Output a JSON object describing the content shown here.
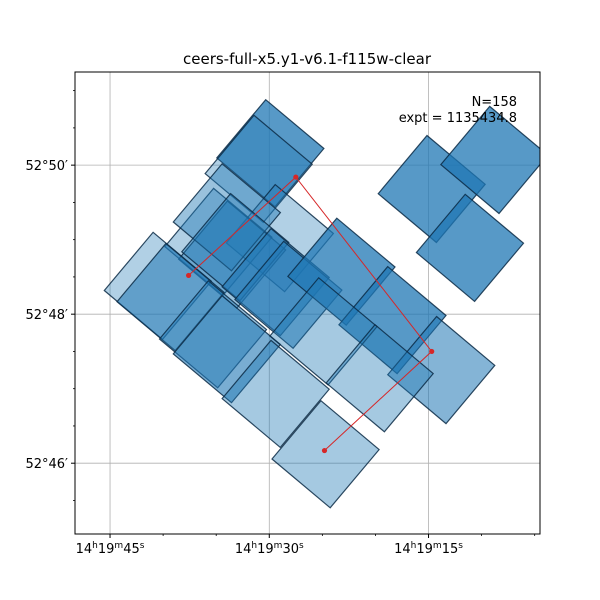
{
  "chart_data": {
    "type": "footprint-map",
    "title": "ceers-full-x5.y1-v6.1-f115w-clear",
    "annotation": {
      "n_label": "N=158",
      "expt_label": "expt = 1135434.8"
    },
    "x_axis": {
      "units": "RA (hms)",
      "major_ticks": [
        {
          "ra_s": 45,
          "label_h": "14",
          "label_m": "19",
          "label_s": "45"
        },
        {
          "ra_s": 30,
          "label_h": "14",
          "label_m": "19",
          "label_s": "30"
        },
        {
          "ra_s": 15,
          "label_h": "14",
          "label_m": "19",
          "label_s": "15"
        }
      ],
      "range_ra_s": [
        48.3,
        4.5
      ]
    },
    "y_axis": {
      "units": "Dec (arcmin offset from 52°)",
      "major_ticks": [
        {
          "dec_arcmin": 50,
          "label": "52°50′"
        },
        {
          "dec_arcmin": 48,
          "label": "52°48′"
        },
        {
          "dec_arcmin": 46,
          "label": "52°46′"
        }
      ],
      "range_dec_arcmin": [
        45.05,
        51.25
      ]
    },
    "grid": true,
    "colors": {
      "tile": "#1f77b4",
      "edge": "#0b2a45",
      "path": "#d62728"
    },
    "pointings_path": [
      {
        "ra_s": 37.6,
        "dec": 48.52
      },
      {
        "ra_s": 27.5,
        "dec": 49.84
      },
      {
        "ra_s": 14.7,
        "dec": 47.5
      },
      {
        "ra_s": 24.8,
        "dec": 46.17
      }
    ],
    "tiles": [
      {
        "ra_s": 29.9,
        "dec": 50.16,
        "alpha": 0.75
      },
      {
        "ra_s": 31.0,
        "dec": 49.95,
        "alpha": 0.35
      },
      {
        "ra_s": 14.7,
        "dec": 49.68,
        "alpha": 0.75
      },
      {
        "ra_s": 8.8,
        "dec": 50.07,
        "alpha": 0.75
      },
      {
        "ra_s": 11.1,
        "dec": 48.89,
        "alpha": 0.75
      },
      {
        "ra_s": 29.0,
        "dec": 49.02,
        "alpha": 0.35
      },
      {
        "ra_s": 34.8,
        "dec": 48.97,
        "alpha": 0.35
      },
      {
        "ra_s": 33.5,
        "dec": 48.8,
        "alpha": 0.45
      },
      {
        "ra_s": 40.5,
        "dec": 48.38,
        "alpha": 0.35
      },
      {
        "ra_s": 39.3,
        "dec": 48.23,
        "alpha": 0.55
      },
      {
        "ra_s": 34.0,
        "dec": 49.3,
        "alpha": 0.45
      },
      {
        "ra_s": 33.2,
        "dec": 48.9,
        "alpha": 0.45
      },
      {
        "ra_s": 29.4,
        "dec": 48.43,
        "alpha": 0.6
      },
      {
        "ra_s": 28.2,
        "dec": 48.26,
        "alpha": 0.55
      },
      {
        "ra_s": 23.2,
        "dec": 48.57,
        "alpha": 0.75
      },
      {
        "ra_s": 18.4,
        "dec": 47.92,
        "alpha": 0.75
      },
      {
        "ra_s": 35.3,
        "dec": 47.73,
        "alpha": 0.45
      },
      {
        "ra_s": 34.0,
        "dec": 47.53,
        "alpha": 0.6
      },
      {
        "ra_s": 24.9,
        "dec": 47.77,
        "alpha": 0.4
      },
      {
        "ra_s": 13.8,
        "dec": 47.25,
        "alpha": 0.55
      },
      {
        "ra_s": 29.4,
        "dec": 46.93,
        "alpha": 0.4
      },
      {
        "ra_s": 19.6,
        "dec": 47.14,
        "alpha": 0.4
      },
      {
        "ra_s": 24.7,
        "dec": 46.12,
        "alpha": 0.4
      }
    ]
  }
}
